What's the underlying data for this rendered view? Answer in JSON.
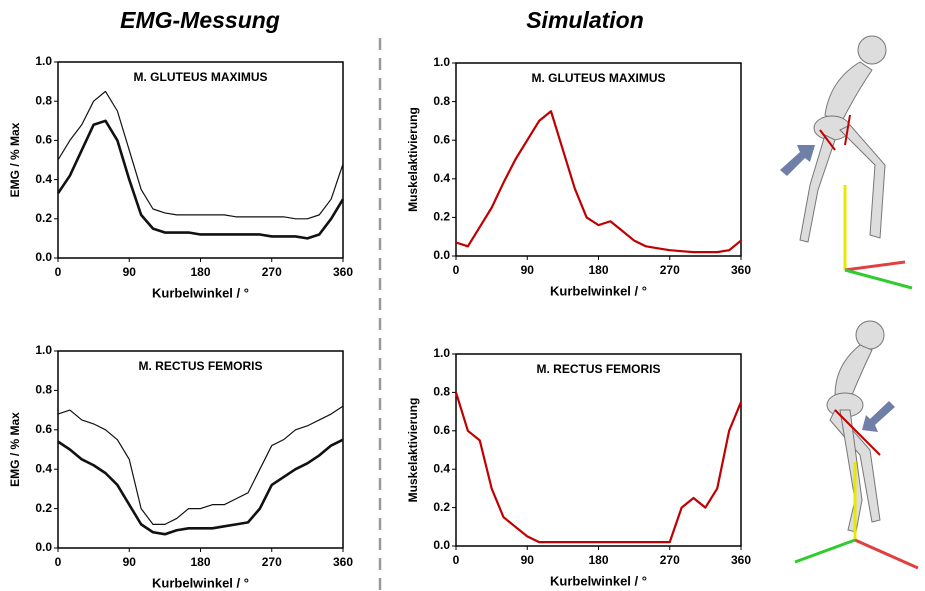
{
  "headings": [
    "EMG-Messung",
    "Simulation"
  ],
  "chart_data": [
    {
      "type": "line",
      "title": "M. GLUTEUS MAXIMUS",
      "xlabel": "Kurbelwinkel / °",
      "ylabel": "EMG / % Max",
      "x": [
        0,
        15,
        30,
        45,
        60,
        75,
        90,
        105,
        120,
        135,
        150,
        165,
        180,
        195,
        210,
        225,
        240,
        255,
        270,
        285,
        300,
        315,
        330,
        345,
        360
      ],
      "series": [
        {
          "color": "#111111",
          "line_width": 1.2,
          "values": [
            0.5,
            0.6,
            0.68,
            0.8,
            0.85,
            0.75,
            0.55,
            0.35,
            0.25,
            0.23,
            0.22,
            0.22,
            0.22,
            0.22,
            0.22,
            0.21,
            0.21,
            0.21,
            0.21,
            0.21,
            0.2,
            0.2,
            0.22,
            0.3,
            0.48
          ]
        },
        {
          "color": "#111111",
          "line_width": 2.6,
          "values": [
            0.33,
            0.42,
            0.55,
            0.68,
            0.7,
            0.6,
            0.4,
            0.22,
            0.15,
            0.13,
            0.13,
            0.13,
            0.12,
            0.12,
            0.12,
            0.12,
            0.12,
            0.12,
            0.11,
            0.11,
            0.11,
            0.1,
            0.12,
            0.2,
            0.3
          ]
        }
      ],
      "xlim": [
        0,
        360
      ],
      "ylim": [
        0,
        1
      ],
      "xticks": [
        0,
        90,
        180,
        270,
        360
      ],
      "yticks": [
        {
          "value": 0,
          "label": "0.0"
        },
        {
          "value": 0.2,
          "label": "0.2"
        },
        {
          "value": 0.4,
          "label": "0.4"
        },
        {
          "value": 0.6,
          "label": "0.6"
        },
        {
          "value": 0.8,
          "label": "0.8"
        },
        {
          "value": 1,
          "label": "1.0"
        }
      ]
    },
    {
      "type": "line",
      "title": "M. RECTUS FEMORIS",
      "xlabel": "Kurbelwinkel / °",
      "ylabel": "EMG / % Max",
      "x": [
        0,
        15,
        30,
        45,
        60,
        75,
        90,
        105,
        120,
        135,
        150,
        165,
        180,
        195,
        210,
        225,
        240,
        255,
        270,
        285,
        300,
        315,
        330,
        345,
        360
      ],
      "series": [
        {
          "color": "#111111",
          "line_width": 1.2,
          "values": [
            0.68,
            0.7,
            0.65,
            0.63,
            0.6,
            0.55,
            0.45,
            0.2,
            0.12,
            0.12,
            0.15,
            0.2,
            0.2,
            0.22,
            0.22,
            0.25,
            0.28,
            0.4,
            0.52,
            0.55,
            0.6,
            0.62,
            0.65,
            0.68,
            0.72
          ]
        },
        {
          "color": "#111111",
          "line_width": 2.6,
          "values": [
            0.54,
            0.5,
            0.45,
            0.42,
            0.38,
            0.32,
            0.22,
            0.12,
            0.08,
            0.07,
            0.09,
            0.1,
            0.1,
            0.1,
            0.11,
            0.12,
            0.13,
            0.2,
            0.32,
            0.36,
            0.4,
            0.43,
            0.47,
            0.52,
            0.55
          ]
        }
      ],
      "xlim": [
        0,
        360
      ],
      "ylim": [
        0,
        1
      ],
      "xticks": [
        0,
        90,
        180,
        270,
        360
      ],
      "yticks": [
        {
          "value": 0,
          "label": "0.0"
        },
        {
          "value": 0.2,
          "label": "0.2"
        },
        {
          "value": 0.4,
          "label": "0.4"
        },
        {
          "value": 0.6,
          "label": "0.6"
        },
        {
          "value": 0.8,
          "label": "0.8"
        },
        {
          "value": 1,
          "label": "1.0"
        }
      ]
    },
    {
      "type": "line",
      "title": "M. GLUTEUS MAXIMUS",
      "xlabel": "Kurbelwinkel / °",
      "ylabel": "Muskelaktivierung",
      "x": [
        0,
        15,
        30,
        45,
        60,
        75,
        90,
        105,
        120,
        135,
        150,
        165,
        180,
        195,
        210,
        225,
        240,
        255,
        270,
        285,
        300,
        315,
        330,
        345,
        360
      ],
      "series": [
        {
          "color": "#c00000",
          "line_width": 2.2,
          "values": [
            0.07,
            0.05,
            0.15,
            0.25,
            0.38,
            0.5,
            0.6,
            0.7,
            0.75,
            0.55,
            0.35,
            0.2,
            0.16,
            0.18,
            0.13,
            0.08,
            0.05,
            0.04,
            0.03,
            0.025,
            0.02,
            0.02,
            0.02,
            0.03,
            0.08
          ]
        }
      ],
      "xlim": [
        0,
        360
      ],
      "ylim": [
        0,
        1
      ],
      "xticks": [
        0,
        90,
        180,
        270,
        360
      ],
      "yticks": [
        {
          "value": 0,
          "label": "0.0"
        },
        {
          "value": 0.2,
          "label": "0.2"
        },
        {
          "value": 0.4,
          "label": "0.4"
        },
        {
          "value": 0.6,
          "label": "0.6"
        },
        {
          "value": 0.8,
          "label": "0.8"
        },
        {
          "value": 1,
          "label": "1.0"
        }
      ]
    },
    {
      "type": "line",
      "title": "M. RECTUS FEMORIS",
      "xlabel": "Kurbelwinkel / °",
      "ylabel": "Muskelaktivierung",
      "x": [
        0,
        15,
        30,
        45,
        60,
        75,
        90,
        105,
        120,
        135,
        150,
        165,
        180,
        195,
        210,
        225,
        240,
        255,
        270,
        285,
        300,
        315,
        330,
        345,
        360
      ],
      "series": [
        {
          "color": "#c00000",
          "line_width": 2.2,
          "values": [
            0.8,
            0.6,
            0.55,
            0.3,
            0.15,
            0.1,
            0.05,
            0.02,
            0.02,
            0.02,
            0.02,
            0.02,
            0.02,
            0.02,
            0.02,
            0.02,
            0.02,
            0.02,
            0.02,
            0.2,
            0.25,
            0.2,
            0.3,
            0.6,
            0.75
          ]
        }
      ],
      "xlim": [
        0,
        360
      ],
      "ylim": [
        0,
        1
      ],
      "xticks": [
        0,
        90,
        180,
        270,
        360
      ],
      "yticks": [
        {
          "value": 0,
          "label": "0.0"
        },
        {
          "value": 0.2,
          "label": "0.2"
        },
        {
          "value": 0.4,
          "label": "0.4"
        },
        {
          "value": 0.6,
          "label": "0.6"
        },
        {
          "value": 0.8,
          "label": "0.8"
        },
        {
          "value": 1,
          "label": "1.0"
        }
      ]
    }
  ]
}
